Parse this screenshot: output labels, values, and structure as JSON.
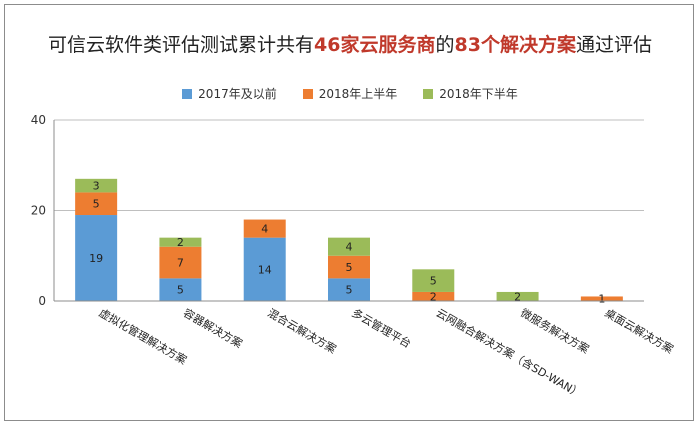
{
  "title_parts": [
    {
      "text": "可信云软件类评估测试累计共有",
      "hl": false
    },
    {
      "text": "46家云服务商",
      "hl": true
    },
    {
      "text": "的",
      "hl": false
    },
    {
      "text": "83个解决方案",
      "hl": true
    },
    {
      "text": "通过评估",
      "hl": false
    }
  ],
  "colors": {
    "s2017": "#5b9bd5",
    "s2018a": "#ed7d31",
    "s2018b": "#9bbb59"
  },
  "chart_data": {
    "type": "bar",
    "stacked": true,
    "categories": [
      "虚拟化管理解决方案",
      "容器解决方案",
      "混合云解决方案",
      "多云管理平台",
      "云网融合解决方案（含SD-WAN）",
      "微服务解决方案",
      "桌面云解决方案"
    ],
    "series": [
      {
        "name": "2017年及以前",
        "color": "#5b9bd5",
        "values": [
          19,
          5,
          14,
          5,
          0,
          0,
          0
        ]
      },
      {
        "name": "2018年上半年",
        "color": "#ed7d31",
        "values": [
          5,
          7,
          4,
          5,
          2,
          0,
          1
        ]
      },
      {
        "name": "2018年下半年",
        "color": "#9bbb59",
        "values": [
          3,
          2,
          0,
          4,
          5,
          2,
          0
        ]
      }
    ],
    "ylim": [
      0,
      40
    ],
    "yticks": [
      0,
      20,
      40
    ],
    "grid": true,
    "legend": "top-center"
  }
}
